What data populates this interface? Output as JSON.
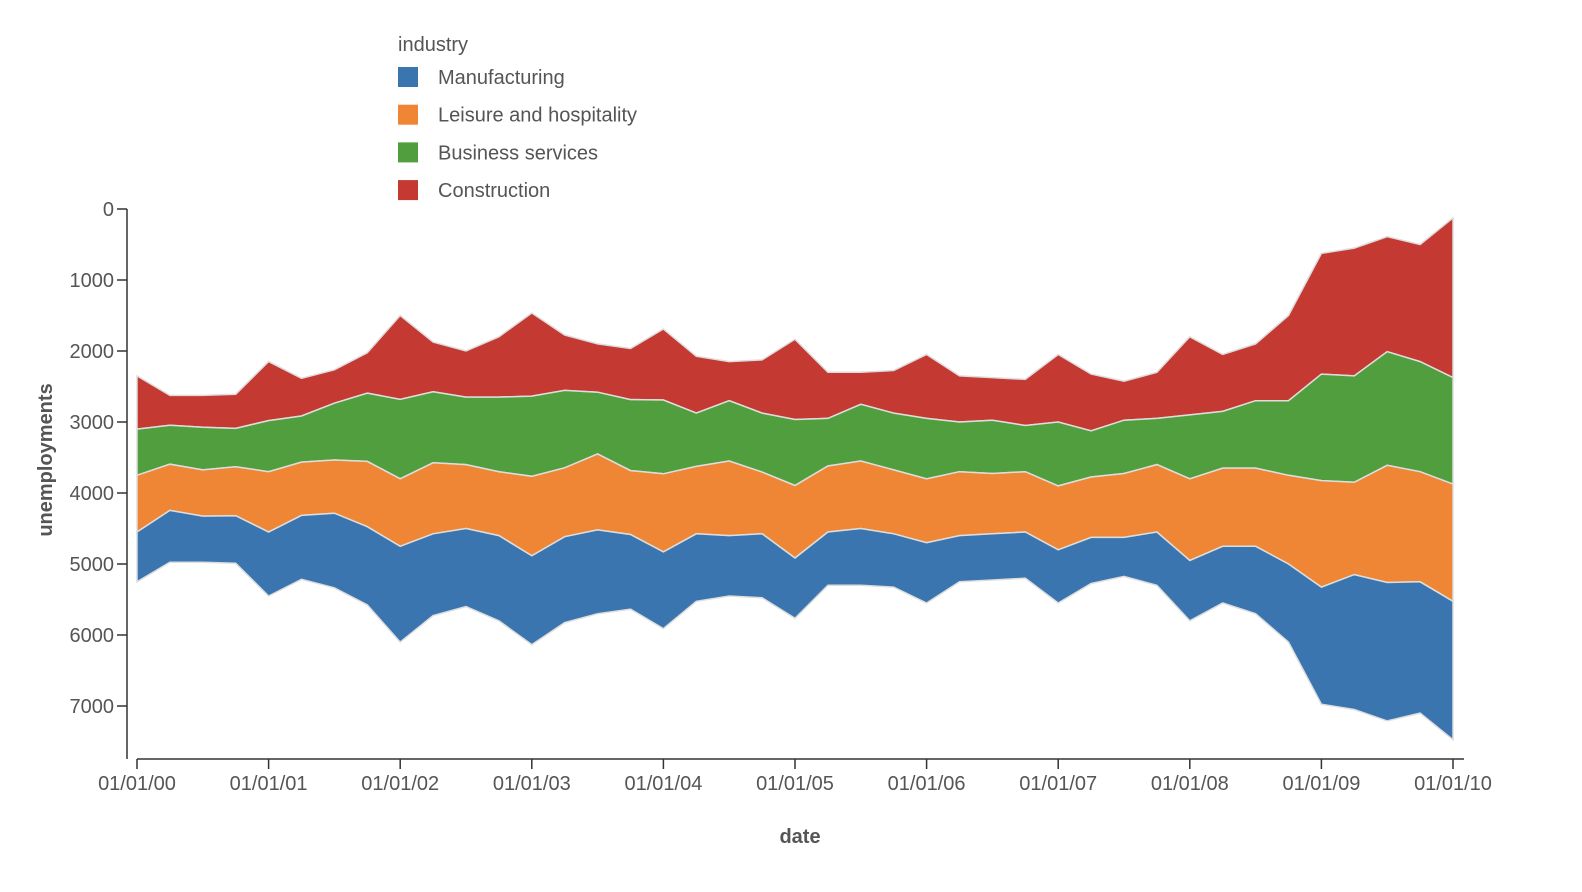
{
  "chart_data": {
    "type": "area",
    "stack": "center",
    "xlabel": "date",
    "ylabel": "unemployments",
    "y_axis_reversed": true,
    "y_ticks": [
      "0",
      "1000",
      "2000",
      "3000",
      "4000",
      "5000",
      "6000",
      "7000"
    ],
    "x_ticks": [
      "01/01/00",
      "01/01/01",
      "01/01/02",
      "01/01/03",
      "01/01/04",
      "01/01/05",
      "01/01/06",
      "01/01/07",
      "01/01/08",
      "01/01/09",
      "01/01/10"
    ],
    "legend": {
      "title": "industry",
      "placement": "top-left"
    },
    "x": [
      "2000-01",
      "2000-04",
      "2000-07",
      "2000-10",
      "2001-01",
      "2001-04",
      "2001-07",
      "2001-10",
      "2002-01",
      "2002-04",
      "2002-07",
      "2002-10",
      "2003-01",
      "2003-04",
      "2003-07",
      "2003-10",
      "2004-01",
      "2004-04",
      "2004-07",
      "2004-10",
      "2005-01",
      "2005-04",
      "2005-07",
      "2005-10",
      "2006-01",
      "2006-04",
      "2006-07",
      "2006-10",
      "2007-01",
      "2007-04",
      "2007-07",
      "2007-10",
      "2008-01",
      "2008-04",
      "2008-07",
      "2008-10",
      "2009-01",
      "2009-04",
      "2009-07",
      "2009-10",
      "2010-01"
    ],
    "series": [
      {
        "name": "Manufacturing",
        "color": "#3a75af",
        "values": [
          700,
          730,
          650,
          670,
          900,
          900,
          1050,
          1100,
          1350,
          1150,
          1100,
          1200,
          1250,
          1210,
          1180,
          1050,
          1080,
          950,
          850,
          900,
          850,
          750,
          800,
          750,
          850,
          650,
          650,
          650,
          750,
          650,
          550,
          750,
          850,
          800,
          950,
          1100,
          1650,
          1900,
          1950,
          1850,
          1950
        ]
      },
      {
        "name": "Leisure and hospitality",
        "color": "#ef8636",
        "values": [
          800,
          650,
          650,
          690,
          850,
          750,
          750,
          920,
          950,
          1000,
          900,
          900,
          1120,
          970,
          1070,
          900,
          1100,
          950,
          1050,
          870,
          1020,
          930,
          950,
          900,
          900,
          900,
          850,
          850,
          900,
          850,
          900,
          950,
          1150,
          1100,
          1100,
          1250,
          1500,
          1300,
          1650,
          1550,
          1650
        ]
      },
      {
        "name": "Business services",
        "color": "#519e3e",
        "values": [
          650,
          550,
          600,
          540,
          720,
          650,
          800,
          960,
          1120,
          1000,
          950,
          1050,
          1130,
          1090,
          870,
          1000,
          1040,
          750,
          850,
          830,
          930,
          670,
          800,
          800,
          850,
          700,
          750,
          650,
          900,
          650,
          750,
          650,
          900,
          800,
          950,
          1050,
          1500,
          1500,
          1600,
          1550,
          1500
        ]
      },
      {
        "name": "Construction",
        "color": "#c43932",
        "values": [
          750,
          420,
          450,
          480,
          830,
          530,
          470,
          570,
          1180,
          700,
          650,
          850,
          1170,
          780,
          680,
          720,
          1000,
          800,
          550,
          750,
          1130,
          650,
          450,
          600,
          900,
          650,
          600,
          650,
          950,
          800,
          550,
          650,
          1100,
          800,
          800,
          1200,
          1700,
          1800,
          1620,
          1650,
          2250
        ]
      }
    ]
  }
}
